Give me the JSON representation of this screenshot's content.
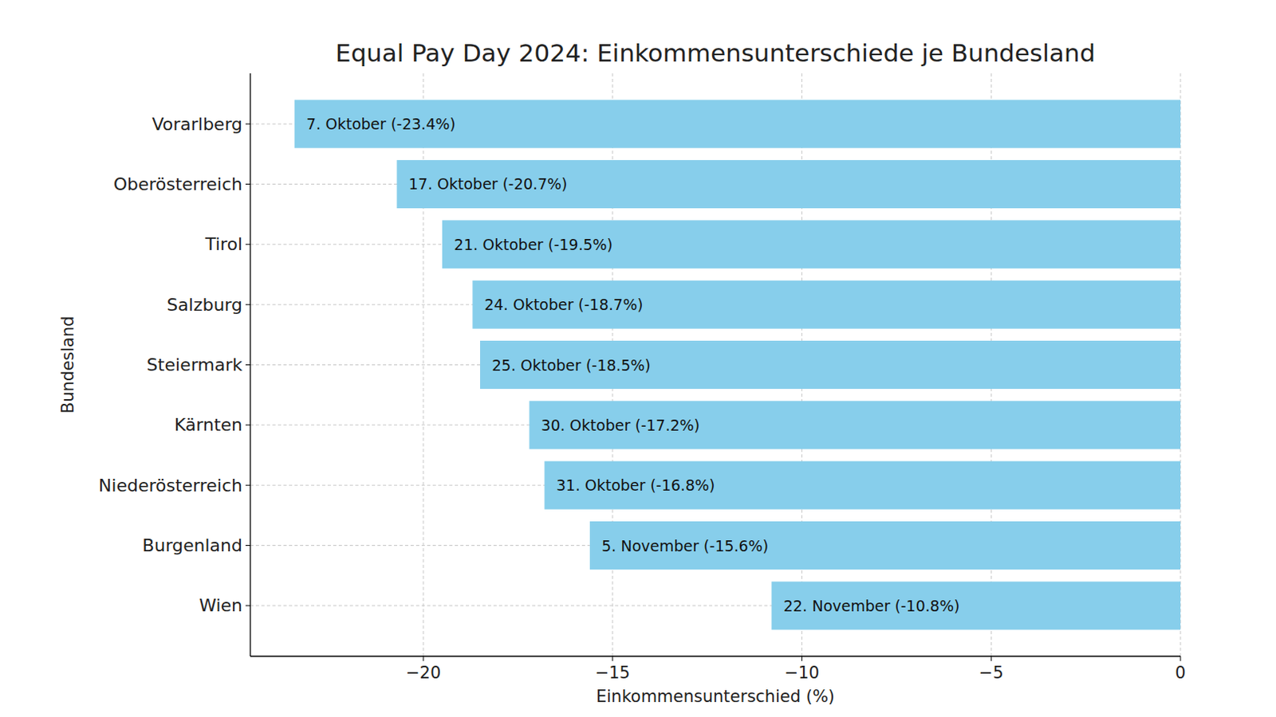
{
  "chart_data": {
    "type": "bar",
    "orientation": "horizontal",
    "title": "Equal Pay Day 2024: Einkommensunterschiede je Bundesland",
    "x_label": "Einkommensunterschied (%)",
    "y_label": "Bundesland",
    "categories": [
      "Vorarlberg",
      "Oberösterreich",
      "Tirol",
      "Salzburg",
      "Steiermark",
      "Kärnten",
      "Niederösterreich",
      "Burgenland",
      "Wien"
    ],
    "values": [
      -23.4,
      -20.7,
      -19.5,
      -18.7,
      -18.5,
      -17.2,
      -16.8,
      -15.6,
      -10.8
    ],
    "value_labels": [
      "7. Oktober (-23.4%)",
      "17. Oktober (-20.7%)",
      "21. Oktober (-19.5%)",
      "24. Oktober (-18.7%)",
      "25. Oktober (-18.5%)",
      "30. Oktober (-17.2%)",
      "31. Oktober (-16.8%)",
      "5. November (-15.6%)",
      "22. November (-10.8%)"
    ],
    "data_labels": true,
    "color": "#87ceeb",
    "xlim": [
      -24.57,
      0
    ],
    "xticks": [
      {
        "value": -20,
        "label": "−20"
      },
      {
        "value": -15,
        "label": "−15"
      },
      {
        "value": -10,
        "label": "−10"
      },
      {
        "value": -5,
        "label": "−5"
      },
      0
    ],
    "grid": true
  }
}
